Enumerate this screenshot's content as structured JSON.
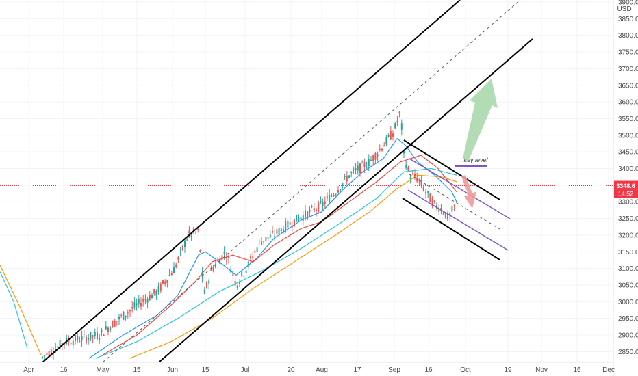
{
  "chart_data": {
    "type": "line",
    "title": "",
    "currency": "USD",
    "x_ticks": [
      "Apr",
      "16",
      "May",
      "15",
      "Jun",
      "15",
      "Jul",
      "20",
      "Aug",
      "17",
      "Sep",
      "16",
      "Oct",
      "19",
      "Nov",
      "16",
      "Dec"
    ],
    "y_ticks": [
      "2850.0",
      "2900.0",
      "2950.0",
      "3000.0",
      "3050.0",
      "3100.0",
      "3150.0",
      "3200.0",
      "3250.0",
      "3300.0",
      "3350.0",
      "3400.0",
      "3450.0",
      "3500.0",
      "3550.0",
      "3600.0",
      "3650.0",
      "3700.0",
      "3750.0",
      "3800.0",
      "3850.0",
      "3900.0"
    ],
    "ylim": [
      2825,
      3910
    ],
    "last_price": "3348.6",
    "countdown": "14:52",
    "annotation": "key level",
    "series_shown": [
      "price candles",
      "moving average (blue)",
      "moving average (red)",
      "moving average (orange)",
      "moving average (cyan)"
    ],
    "drawings": [
      "upper channel line",
      "lower channel line",
      "dashed median line",
      "descending channel",
      "green up arrow",
      "red down arrow",
      "key level line"
    ],
    "colors": {
      "up_candle": "#26a69a",
      "down_candle": "#ef5350",
      "price_label": "#f23645",
      "ma_blue": "#2196f3",
      "ma_red": "#f44336",
      "ma_orange": "#ff9800",
      "ma_cyan": "#26c6da",
      "channel": "#000000",
      "parallel": "#7e57c2",
      "arrow_up": "#a5d6a7",
      "arrow_down": "#ef9a9a"
    }
  }
}
